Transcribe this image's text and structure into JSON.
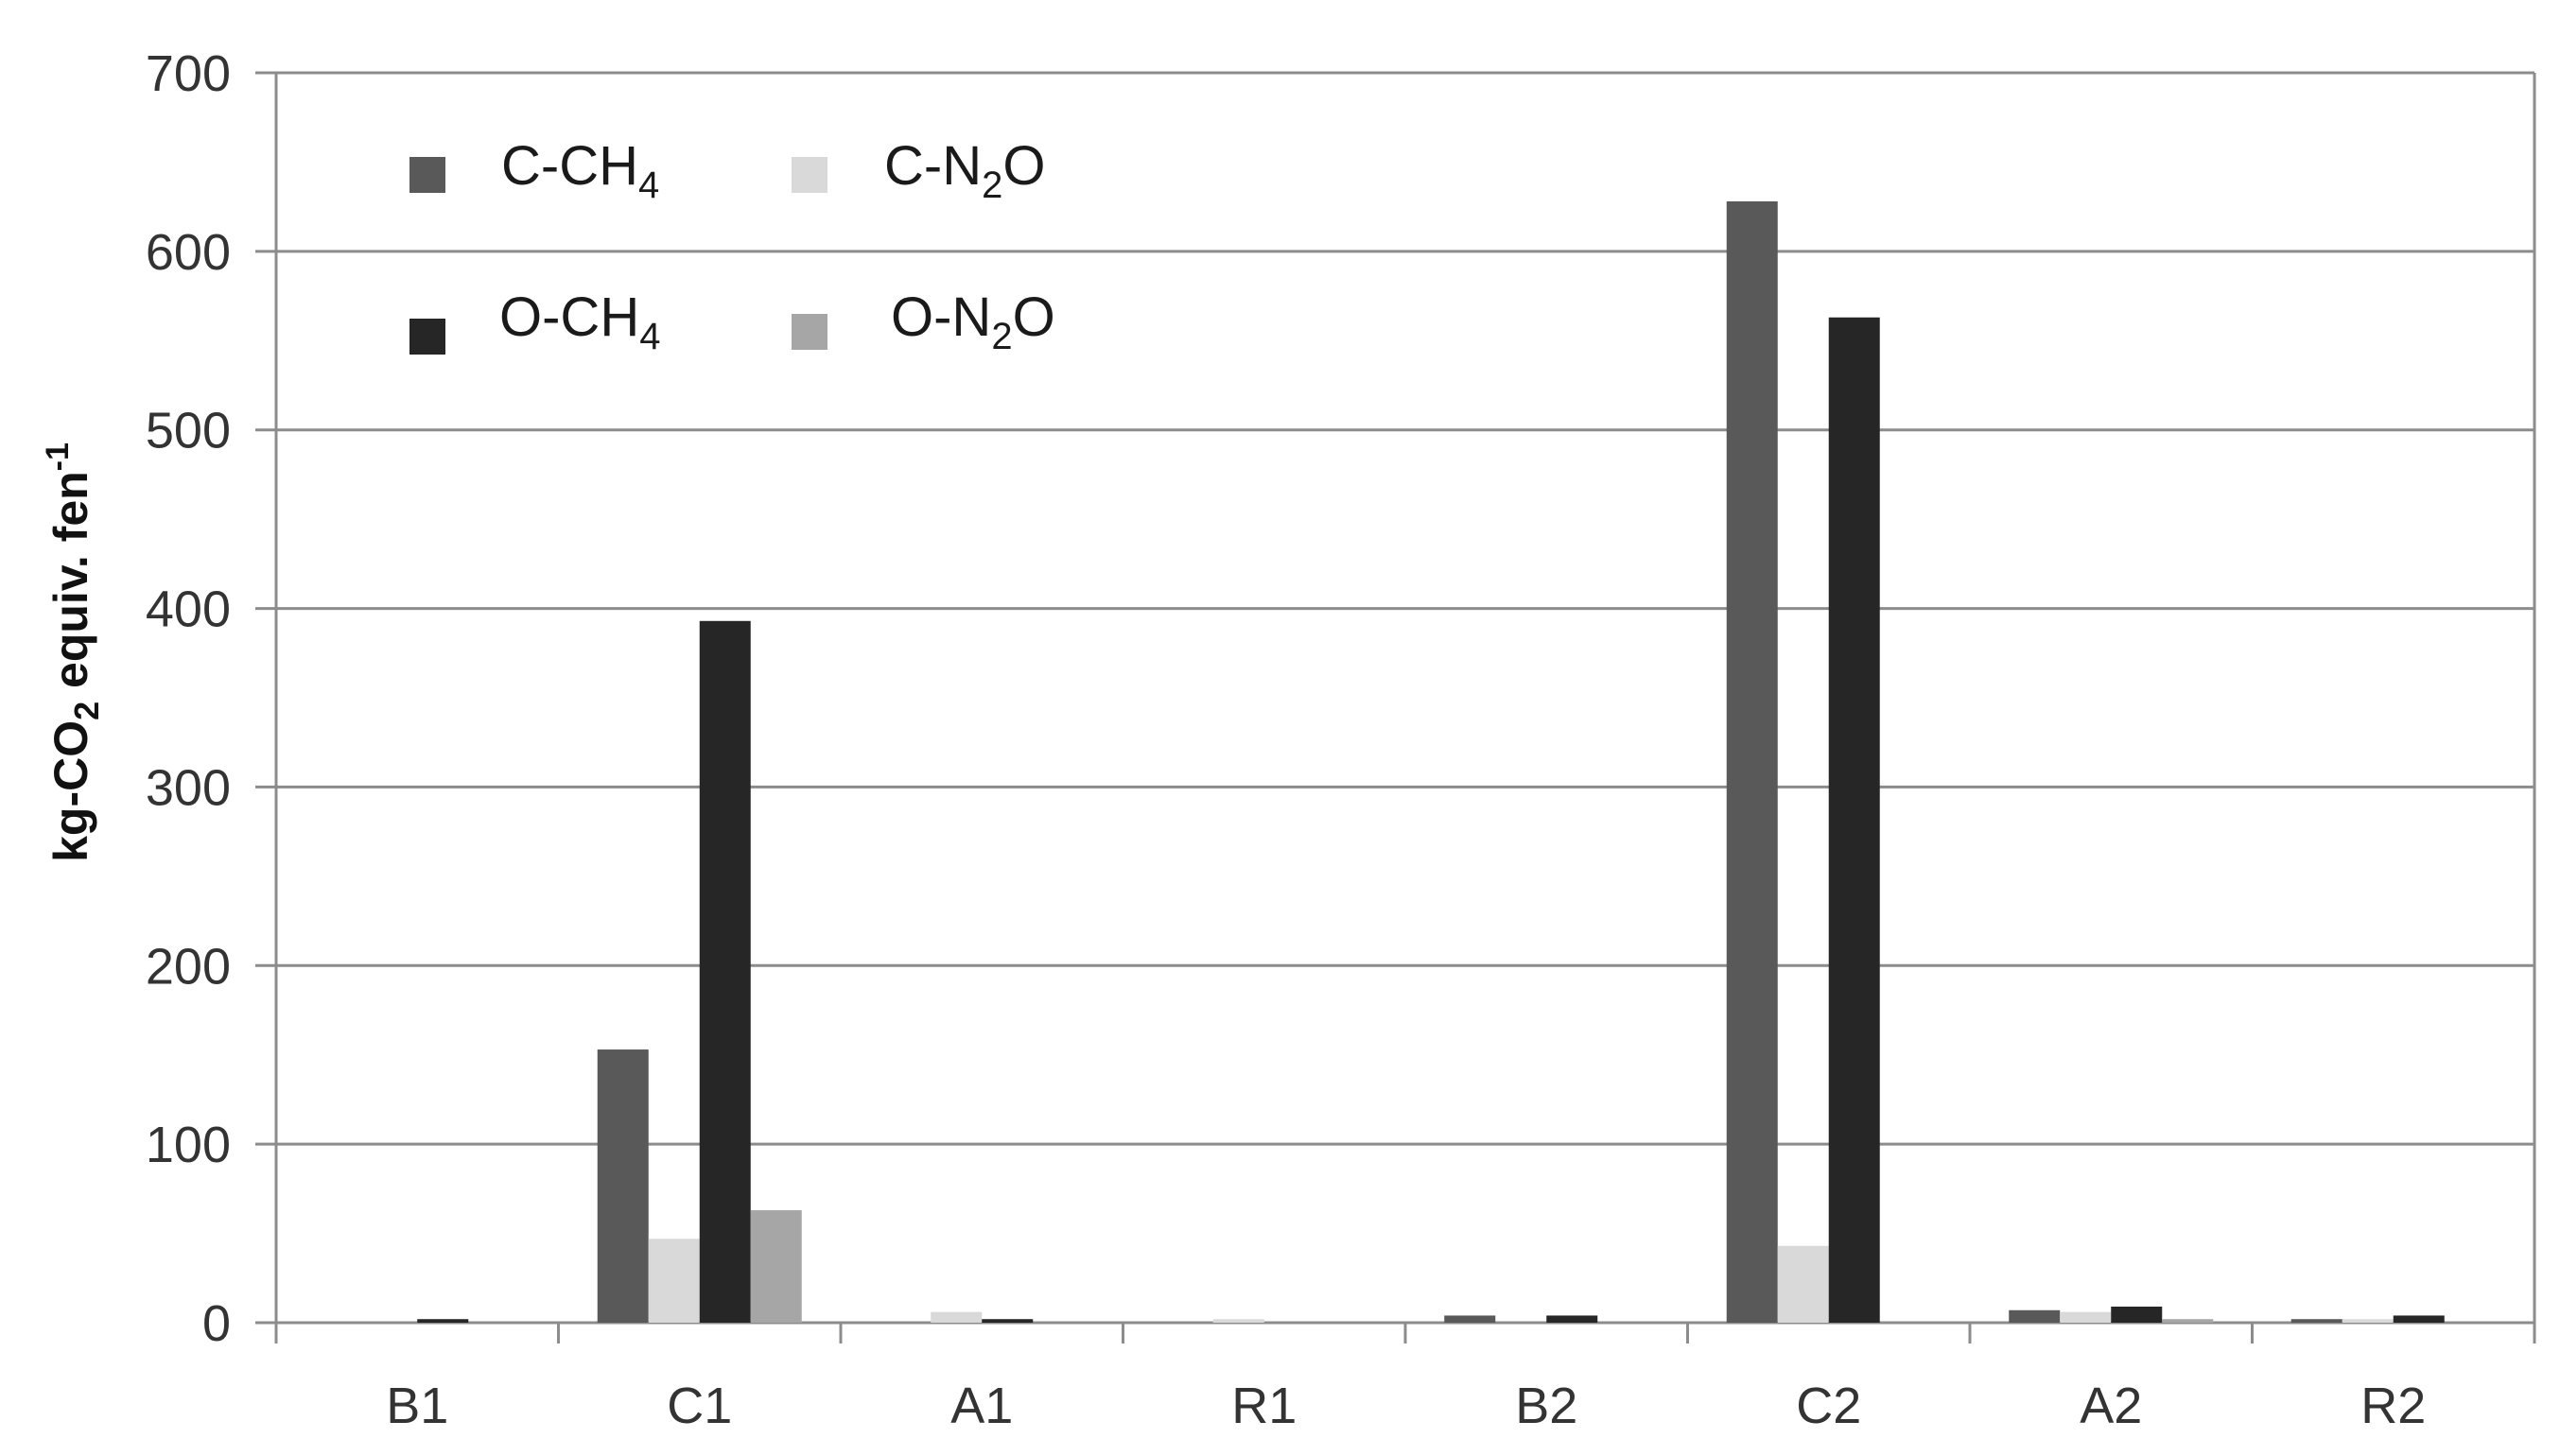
{
  "chart_data": {
    "type": "bar",
    "title": "",
    "xlabel": "",
    "ylabel": {
      "prefix": "kg-CO",
      "sub": "2",
      "middle": " equiv. fen",
      "sup": "-1"
    },
    "categories": [
      "B1",
      "C1",
      "A1",
      "R1",
      "B2",
      "C2",
      "A2",
      "R2"
    ],
    "ylim": [
      0,
      700
    ],
    "yticks": [
      "0",
      "100",
      "200",
      "300",
      "400",
      "500",
      "600",
      "700"
    ],
    "grid": true,
    "legend_position": "top-left",
    "series": [
      {
        "name": "C-CH4",
        "label": {
          "base": "C-CH",
          "sub": "4",
          "tail": ""
        },
        "color": "#595959",
        "values": [
          0,
          153,
          0,
          0,
          4,
          628,
          7,
          2
        ]
      },
      {
        "name": "C-N2O",
        "label": {
          "base": "C-N",
          "sub": "2",
          "tail": "O"
        },
        "color": "#d9d9d9",
        "values": [
          0,
          47,
          6,
          2,
          0,
          43,
          6,
          2
        ]
      },
      {
        "name": "O-CH4",
        "label": {
          "base": "O-CH",
          "sub": "4",
          "tail": ""
        },
        "color": "#262626",
        "values": [
          2,
          393,
          2,
          0,
          4,
          563,
          9,
          4
        ]
      },
      {
        "name": "O-N2O",
        "label": {
          "base": "O-N",
          "sub": "2",
          "tail": "O"
        },
        "color": "#a6a6a6",
        "values": [
          0,
          63,
          0,
          0,
          0,
          0,
          2,
          0
        ]
      }
    ]
  }
}
